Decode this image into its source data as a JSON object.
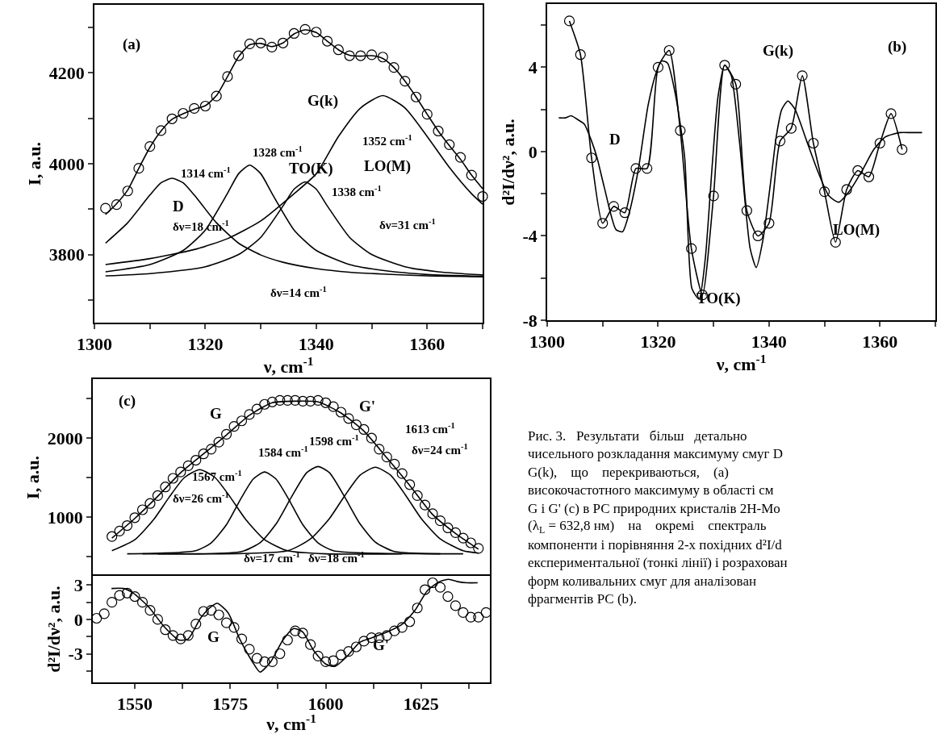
{
  "chart_data": [
    {
      "type": "line",
      "xlabel": "ν, cm$^{-1}$",
      "ylabel": "I, a.u.",
      "xlim": [
        1300,
        1370
      ],
      "ylim": [
        3650,
        4350
      ],
      "xticks": [
        1300,
        {
          "value": 1310,
          "label": null
        },
        1320,
        {
          "value": 1330,
          "label": null
        },
        1340,
        {
          "value": 1350,
          "label": null
        },
        1360,
        {
          "value": 1370,
          "label": null
        }
      ],
      "yticks": [
        {
          "value": 3700,
          "label": null
        },
        3800,
        {
          "value": 3900,
          "label": null
        },
        4000,
        {
          "value": 4100,
          "label": null
        },
        4200,
        {
          "value": 4300,
          "label": null
        }
      ],
      "series": [
        {
          "type": "scatter",
          "marker": "circle",
          "color": "#000000",
          "x": [
            1302,
            1304,
            1306,
            1308,
            1310,
            1312,
            1314,
            1316,
            1318,
            1320,
            1322,
            1324,
            1326,
            1328,
            1330,
            1332,
            1334,
            1336,
            1338,
            1340,
            1342,
            1344,
            1346,
            1348,
            1350,
            1352,
            1354,
            1356,
            1358,
            1360,
            1362,
            1364,
            1366,
            1368,
            1370
          ],
          "values": [
            3902,
            3910,
            3940,
            3990,
            4038,
            4073,
            4099,
            4111,
            4122,
            4127,
            4149,
            4192,
            4238,
            4264,
            4266,
            4257,
            4266,
            4287,
            4296,
            4290,
            4270,
            4251,
            4238,
            4238,
            4240,
            4235,
            4212,
            4182,
            4147,
            4109,
            4072,
            4042,
            4014,
            3975,
            3928
          ]
        },
        {
          "type": "line",
          "color": "#000000",
          "x": [
            1302,
            1304,
            1306,
            1308,
            1310,
            1312,
            1314,
            1316,
            1318,
            1320,
            1322,
            1324,
            1326,
            1328,
            1330,
            1332,
            1334,
            1336,
            1338,
            1340,
            1342,
            1344,
            1346,
            1348,
            1350,
            1352,
            1354,
            1356,
            1358,
            1360,
            1362,
            1364,
            1366,
            1368,
            1370
          ],
          "values": [
            3888,
            3912,
            3942,
            3990,
            4036,
            4072,
            4098,
            4110,
            4120,
            4128,
            4150,
            4192,
            4236,
            4262,
            4265,
            4258,
            4266,
            4286,
            4295,
            4289,
            4270,
            4251,
            4239,
            4237,
            4238,
            4232,
            4212,
            4182,
            4147,
            4109,
            4072,
            4040,
            4010,
            3975,
            3945
          ]
        },
        {
          "type": "line",
          "color": "#000000",
          "x": [
            1302,
            1306,
            1310,
            1312,
            1314,
            1316,
            1318,
            1322,
            1326,
            1330,
            1334,
            1340,
            1346,
            1352,
            1360,
            1370
          ],
          "values": [
            3825,
            3870,
            3931,
            3958,
            3968,
            3958,
            3931,
            3870,
            3825,
            3799,
            3783,
            3769,
            3761,
            3757,
            3753,
            3751
          ]
        },
        {
          "type": "line",
          "color": "#000000",
          "x": [
            1302,
            1310,
            1316,
            1320,
            1324,
            1326,
            1328,
            1330,
            1332,
            1336,
            1340,
            1346,
            1352,
            1360,
            1370
          ],
          "values": [
            3762,
            3778,
            3809,
            3854,
            3935,
            3978,
            3997,
            3978,
            3935,
            3854,
            3809,
            3778,
            3765,
            3756,
            3752
          ]
        },
        {
          "type": "line",
          "color": "#000000",
          "x": [
            1302,
            1310,
            1320,
            1326,
            1330,
            1334,
            1336,
            1338,
            1340,
            1342,
            1346,
            1350,
            1356,
            1362,
            1370
          ],
          "values": [
            3753,
            3758,
            3773,
            3800,
            3838,
            3907,
            3944,
            3960,
            3944,
            3907,
            3838,
            3800,
            3773,
            3762,
            3755
          ]
        },
        {
          "type": "line",
          "color": "#000000",
          "x": [
            1302,
            1310,
            1318,
            1324,
            1330,
            1336,
            1340,
            1344,
            1348,
            1352,
            1356,
            1360,
            1364,
            1368,
            1370
          ],
          "values": [
            3778,
            3791,
            3811,
            3835,
            3874,
            3934,
            3978,
            4060,
            4123,
            4150,
            4123,
            4060,
            3992,
            3934,
            3911
          ]
        }
      ],
      "annotations": [
        "(a)",
        "G(k)",
        "1314 cm$^{-1}$",
        "D",
        "δν=18 cm$^{-1}$",
        "1328 cm$^{-1}$",
        "TO(K)",
        "1338 cm$^{-1}$",
        "1352 cm$^{-1}$",
        "LO(M)",
        "δν=31 cm$^{-1}$",
        "δν=14 cm$^{-1}$"
      ]
    },
    {
      "type": "line",
      "xlabel": "ν, cm$^{-1}$",
      "ylabel": "d²I/dν², a.u.",
      "xlim": [
        1300,
        1370
      ],
      "ylim": [
        -8,
        7
      ],
      "xticks": [
        1300,
        {
          "value": 1310,
          "label": null
        },
        1320,
        {
          "value": 1330,
          "label": null
        },
        1340,
        {
          "value": 1350,
          "label": null
        },
        1360,
        {
          "value": 1370,
          "label": null
        }
      ],
      "yticks": [
        -8,
        {
          "value": -6,
          "label": null
        },
        -4,
        {
          "value": -2,
          "label": null
        },
        0,
        {
          "value": 2,
          "label": null
        },
        4,
        {
          "value": 6,
          "label": null
        }
      ],
      "series": [
        {
          "type": "line",
          "marker": "circle",
          "color": "#000000",
          "x": [
            1304,
            1306,
            1308,
            1310,
            1312,
            1314,
            1316,
            1318,
            1320,
            1322,
            1324,
            1326,
            1328,
            1330,
            1332,
            1334,
            1336,
            1338,
            1340,
            1342,
            1344,
            1346,
            1348,
            1350,
            1352,
            1354,
            1356,
            1358,
            1360,
            1362,
            1364
          ],
          "values": [
            6.2,
            4.6,
            -0.3,
            -3.4,
            -2.6,
            -2.9,
            -0.8,
            -0.8,
            4.0,
            4.8,
            1.0,
            -4.6,
            -6.8,
            -2.1,
            4.1,
            3.2,
            -2.8,
            -4.0,
            -3.4,
            0.5,
            1.1,
            3.6,
            0.4,
            -1.9,
            -4.3,
            -1.8,
            -0.9,
            -1.2,
            0.4,
            1.8,
            0.1
          ]
        },
        {
          "type": "line",
          "color": "#000000",
          "x": [
            1302.1,
            1303.3,
            1304.3,
            1305.6,
            1306.7,
            1308,
            1309,
            1310.3,
            1312.4,
            1313.6,
            1314.8,
            1316.4,
            1318.2,
            1319.6,
            1320.6,
            1321.7,
            1323.2,
            1324.8,
            1326.1,
            1327.4,
            1328.5,
            1329.8,
            1330.8,
            1332,
            1333.2,
            1334.7,
            1336.6,
            1337.7,
            1338.9,
            1340.5,
            1341.3,
            1342.3,
            1343.4,
            1344.7,
            1346.8,
            1348.9,
            1350.8,
            1352.6,
            1354.7,
            1356.8,
            1358.9,
            1361,
            1363.6,
            1365.7,
            1367.6
          ],
          "values": [
            1.6,
            1.6,
            1.7,
            1.5,
            1.3,
            0.5,
            -0.3,
            -1.7,
            -3.7,
            -3.8,
            -2.9,
            -0.9,
            2.2,
            3.7,
            4.3,
            4.2,
            2.6,
            -0.3,
            -6.5,
            -7.0,
            -5.1,
            -0.5,
            2.6,
            4.1,
            3.6,
            0.4,
            -4.6,
            -5.5,
            -4.2,
            -1.0,
            0.7,
            2.0,
            2.4,
            2.0,
            0.5,
            -1.0,
            -2.1,
            -2.4,
            -1.8,
            -0.9,
            0.1,
            0.7,
            0.9,
            0.9,
            0.9
          ]
        }
      ],
      "annotations": [
        "(b)",
        "G(k)",
        "D",
        "TO(K)",
        "LO(M)"
      ]
    },
    {
      "type": "line",
      "ylabel": "I, a.u.",
      "xlim": [
        1539,
        1643
      ],
      "ylim": [
        250,
        2750
      ],
      "tick_labels": "y",
      "yticks": [
        {
          "value": 500,
          "label": null
        },
        1000,
        {
          "value": 1500,
          "label": null
        },
        2000,
        {
          "value": 2500,
          "label": null
        }
      ],
      "series": [
        {
          "type": "scatter",
          "marker": "circle",
          "color": "#000000",
          "x": [
            1544,
            1546,
            1548,
            1550,
            1552,
            1554,
            1556,
            1558,
            1560,
            1562,
            1564,
            1566,
            1568,
            1570,
            1572,
            1574,
            1576,
            1578,
            1580,
            1582,
            1584,
            1586,
            1588,
            1590,
            1592,
            1594,
            1596,
            1598,
            1600,
            1602,
            1604,
            1606,
            1608,
            1610,
            1612,
            1614,
            1616,
            1618,
            1620,
            1622,
            1624,
            1626,
            1628,
            1630,
            1632,
            1634,
            1636,
            1638,
            1640
          ],
          "values": [
            750,
            820,
            890,
            990,
            1090,
            1170,
            1270,
            1380,
            1490,
            1570,
            1650,
            1720,
            1800,
            1860,
            1950,
            2050,
            2150,
            2220,
            2300,
            2370,
            2430,
            2460,
            2480,
            2480,
            2480,
            2470,
            2470,
            2480,
            2450,
            2400,
            2330,
            2250,
            2170,
            2110,
            2000,
            1860,
            1760,
            1670,
            1550,
            1410,
            1270,
            1150,
            1040,
            950,
            860,
            800,
            730,
            670,
            600
          ]
        },
        {
          "type": "line",
          "color": "#000000",
          "x": [
            1544,
            1550,
            1556,
            1562,
            1568,
            1574,
            1580,
            1586,
            1592,
            1598,
            1604,
            1610,
            1616,
            1622,
            1628,
            1634,
            1640
          ],
          "values": [
            730,
            980,
            1260,
            1560,
            1800,
            2040,
            2290,
            2450,
            2470,
            2460,
            2320,
            2090,
            1750,
            1400,
            1030,
            790,
            590
          ]
        },
        {
          "type": "line",
          "color": "#000000",
          "x": [
            1544,
            1550,
            1555,
            1559,
            1563,
            1567,
            1571,
            1575,
            1579,
            1584,
            1590,
            1600,
            1620
          ],
          "values": [
            570,
            710,
            970,
            1250,
            1500,
            1600,
            1500,
            1250,
            970,
            710,
            570,
            530,
            530
          ]
        },
        {
          "type": "line",
          "color": "#000000",
          "x": [
            1548,
            1566,
            1570,
            1574,
            1578,
            1581,
            1584,
            1587,
            1590,
            1594,
            1598,
            1602,
            1630
          ],
          "values": [
            530,
            570,
            670,
            900,
            1250,
            1480,
            1570,
            1480,
            1250,
            900,
            670,
            570,
            530
          ]
        },
        {
          "type": "line",
          "color": "#000000",
          "x": [
            1552,
            1578,
            1583,
            1587,
            1591,
            1595,
            1598,
            1601,
            1605,
            1609,
            1613,
            1618,
            1636
          ],
          "values": [
            530,
            560,
            680,
            910,
            1250,
            1560,
            1640,
            1560,
            1250,
            910,
            680,
            560,
            530
          ]
        },
        {
          "type": "line",
          "color": "#000000",
          "x": [
            1556,
            1590,
            1596,
            1601,
            1605,
            1609,
            1613,
            1617,
            1621,
            1625,
            1630,
            1636,
            1640
          ],
          "values": [
            530,
            570,
            720,
            980,
            1270,
            1530,
            1630,
            1530,
            1270,
            980,
            720,
            570,
            540
          ]
        }
      ],
      "annotations": [
        "(c)",
        "G",
        "G'",
        "1567 cm$^{-1}$",
        "δν=26 cm$^{-1}$",
        "1584 cm$^{-1}$",
        "1598 cm$^{-1}$",
        "1613 cm$^{-1}$",
        "δν=24 cm$^{-1}$",
        "δν=17 cm$^{-1}$",
        "δν=18 cm$^{-1}$"
      ]
    },
    {
      "type": "line",
      "xlabel": "ν, cm$^{-1}$",
      "ylabel": "d²I/dν², a.u.",
      "xlim": [
        1539,
        1643
      ],
      "ylim": [
        -5.5,
        3.8
      ],
      "xticks": [
        1550,
        {
          "value": 1562.5,
          "label": null
        },
        1575,
        {
          "value": 1587.5,
          "label": null
        },
        1600,
        {
          "value": 1612.5,
          "label": null
        },
        1625,
        {
          "value": 1637.5,
          "label": null
        }
      ],
      "yticks": [
        {
          "value": -4.5,
          "label": null
        },
        -3,
        {
          "value": -1.5,
          "label": null
        },
        0,
        {
          "value": 1.5,
          "label": null
        },
        3
      ],
      "series": [
        {
          "type": "scatter",
          "marker": "circle",
          "color": "#000000",
          "x": [
            1540,
            1542,
            1544,
            1546,
            1548,
            1550,
            1552,
            1554,
            1556,
            1558,
            1560,
            1562,
            1564,
            1566,
            1568,
            1570,
            1572,
            1574,
            1576,
            1578,
            1580,
            1582,
            1584,
            1586,
            1588,
            1590,
            1592,
            1594,
            1596,
            1598,
            1600,
            1602,
            1604,
            1606,
            1608,
            1610,
            1612,
            1614,
            1616,
            1618,
            1620,
            1622,
            1624,
            1626,
            1628,
            1630,
            1632,
            1634,
            1636,
            1638,
            1640,
            1642
          ],
          "values": [
            0.1,
            0.5,
            1.5,
            2.1,
            2.3,
            2.0,
            1.5,
            0.8,
            0.0,
            -0.9,
            -1.4,
            -1.7,
            -1.4,
            -0.4,
            0.7,
            0.8,
            0.4,
            -0.3,
            -0.7,
            -1.7,
            -2.6,
            -3.4,
            -3.7,
            -3.7,
            -3.0,
            -1.8,
            -1.0,
            -1.2,
            -2.2,
            -3.2,
            -3.7,
            -3.6,
            -3.1,
            -2.8,
            -2.4,
            -1.9,
            -1.6,
            -1.6,
            -1.4,
            -1.0,
            -0.7,
            -0.2,
            1.0,
            2.6,
            3.2,
            2.8,
            2.0,
            1.2,
            0.6,
            0.2,
            0.2,
            0.6
          ]
        },
        {
          "type": "line",
          "color": "#000000",
          "x": [
            1543.9,
            1547.1,
            1549.6,
            1553.6,
            1557.6,
            1561.6,
            1564,
            1567.2,
            1569.6,
            1571.6,
            1574.4,
            1577.6,
            1580.8,
            1582.8,
            1585.6,
            1588.8,
            1591.6,
            1594,
            1596.8,
            1600,
            1602.4,
            1605.7,
            1608.9,
            1612.1,
            1616.1,
            1620.1,
            1623.4,
            1626.6,
            1629.8,
            1632.2,
            1634.6,
            1637,
            1639.8
          ],
          "values": [
            2.7,
            2.7,
            2.3,
            1.1,
            -0.6,
            -1.8,
            -1.7,
            0.1,
            1.0,
            1.4,
            0.6,
            -1.8,
            -3.7,
            -4.6,
            -3.7,
            -1.8,
            -0.8,
            -1.1,
            -2.7,
            -3.9,
            -4.1,
            -3.2,
            -2.0,
            -1.6,
            -1.1,
            -0.4,
            0.8,
            2.5,
            3.3,
            3.5,
            3.3,
            3.2,
            3.2
          ]
        }
      ],
      "annotations": [
        "G",
        "G'"
      ]
    },
    {
      "type": "other",
      "annotations": [
        "Рис. 3.   Результати   більш   детально",
        "чисельного розкладання максимуму смуг D",
        "G(k),    що    перекриваються,    (a)",
        "високочастотного максимуму в області см",
        "G і G' (c) в РС природних кристалів 2H-Mo",
        "(λ$_{L}$ = 632,8 нм)    на    окремі    спектраль",
        "компоненти і порівняння 2-х похідних d²I/d",
        "експериментальної (тонкі лінії) і розрахован",
        "форм коливальних смуг для аналізован",
        "фрагментів РС (b)."
      ]
    }
  ]
}
